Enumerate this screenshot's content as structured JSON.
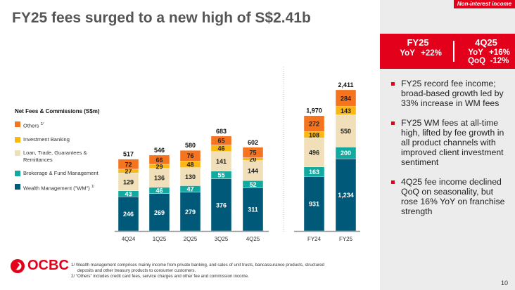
{
  "title": "FY25 fees surged to a new high of S$2.41b",
  "tag": "Non-interest income",
  "highlight": {
    "fy": {
      "label": "FY25",
      "yoy_label": "YoY",
      "yoy": "+22%"
    },
    "q": {
      "label": "4Q25",
      "yoy_label": "YoY",
      "yoy": "+16%",
      "qoq_label": "QoQ",
      "qoq": "-12%"
    }
  },
  "bullets": [
    "FY25 record fee income; broad-based growth led by 33% increase in WM fees",
    "FY25 WM fees at all-time high, lifted by fee growth in all product channels with improved client investment sentiment",
    "4Q25 fee income declined QoQ on seasonality, but rose 16% YoY on franchise strength"
  ],
  "colors": {
    "wm": "#005978",
    "brokerage": "#12aaa0",
    "loan": "#f0dfb8",
    "ib": "#fbb813",
    "others": "#f47420",
    "red": "#e3001b"
  },
  "chart_data": {
    "type": "bar",
    "stacked": true,
    "title": "Net Fees & Commissions (S$m)",
    "legend": [
      {
        "name": "Others",
        "sup": "2/"
      },
      {
        "name": "Investment Banking",
        "sup": ""
      },
      {
        "name": "Loan, Trade, Guarantees & Remittances",
        "sup": ""
      },
      {
        "name": "Brokerage & Fund Management",
        "sup": ""
      },
      {
        "name": "Wealth Management (\"WM\")",
        "sup": "1/"
      }
    ],
    "groups": [
      {
        "categories": [
          "4Q24",
          "1Q25",
          "2Q25",
          "3Q25",
          "4Q25"
        ],
        "series": [
          {
            "name": "Wealth Management",
            "values": [
              246,
              269,
              279,
              376,
              311
            ],
            "labels": [
              "246",
              "269",
              "279",
              "376",
              "311"
            ]
          },
          {
            "name": "Brokerage & Fund Management",
            "values": [
              43,
              46,
              47,
              55,
              52
            ],
            "labels": [
              "43",
              "46",
              "47",
              "55",
              "52"
            ]
          },
          {
            "name": "Loan, Trade, Guarantees & Remittances",
            "values": [
              129,
              136,
              130,
              141,
              144
            ],
            "labels": [
              "129",
              "136",
              "130",
              "141",
              "144"
            ]
          },
          {
            "name": "Investment Banking",
            "values": [
              27,
              29,
              48,
              46,
              20
            ],
            "labels": [
              "27",
              "29",
              "48",
              "46",
              "20"
            ]
          },
          {
            "name": "Others",
            "values": [
              72,
              66,
              76,
              65,
              75
            ],
            "labels": [
              "72",
              "66",
              "76",
              "65",
              "75"
            ]
          }
        ],
        "totals": [
          "517",
          "546",
          "580",
          "683",
          "602"
        ]
      },
      {
        "categories": [
          "FY24",
          "FY25"
        ],
        "series": [
          {
            "name": "Wealth Management",
            "values": [
              931,
              1234
            ],
            "labels": [
              "931",
              "1,234"
            ]
          },
          {
            "name": "Brokerage & Fund Management",
            "values": [
              163,
              200
            ],
            "labels": [
              "163",
              "200"
            ]
          },
          {
            "name": "Loan, Trade, Guarantees & Remittances",
            "values": [
              496,
              550
            ],
            "labels": [
              "496",
              "550"
            ]
          },
          {
            "name": "Investment Banking",
            "values": [
              108,
              143
            ],
            "labels": [
              "108",
              "143"
            ]
          },
          {
            "name": "Others",
            "values": [
              272,
              284
            ],
            "labels": [
              "272",
              "284"
            ]
          }
        ],
        "totals": [
          "1,970",
          "2,411"
        ]
      }
    ]
  },
  "logo": "OCBC",
  "footnotes": [
    "1/ Wealth management comprises mainly income from private banking, and sales of unit trusts, bancassurance products, structured",
    "deposits and other treasury products to consumer customers.",
    "2/ “Others” includes credit card fees, service charges and other fee and commission income."
  ],
  "page": "10"
}
